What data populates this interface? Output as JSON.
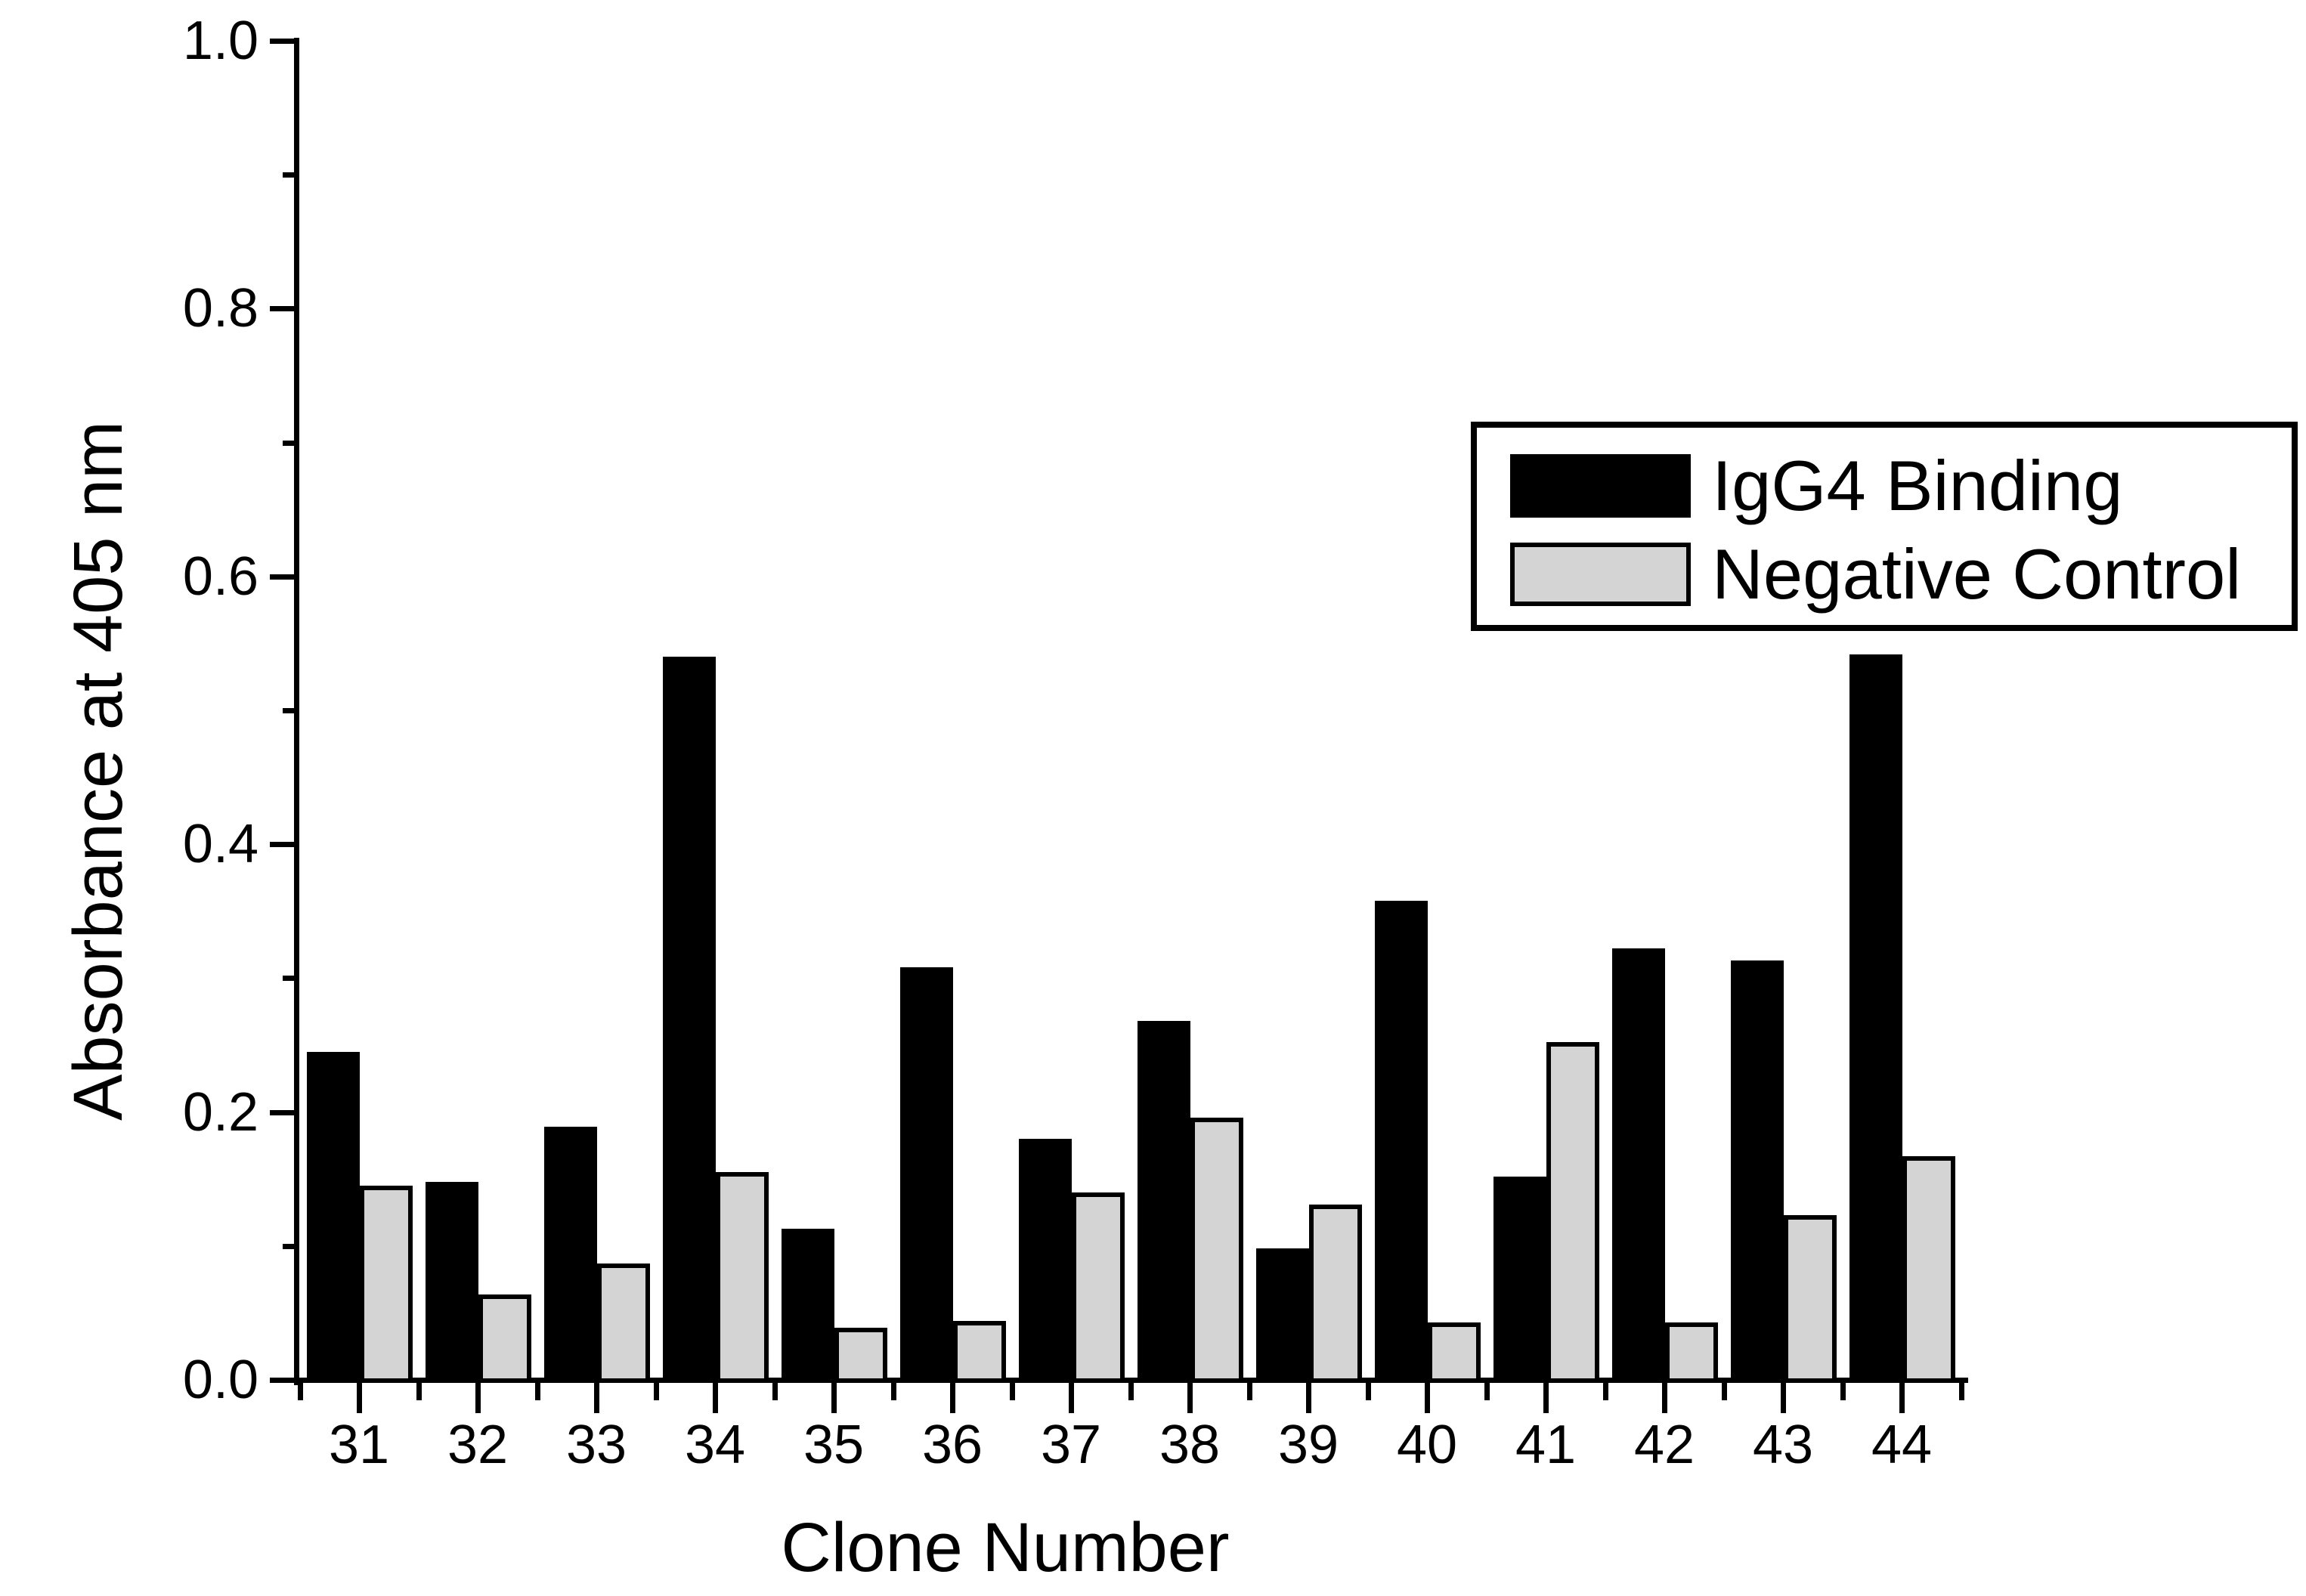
{
  "figure": {
    "background": "#ffffff",
    "axis_color": "#000000",
    "bar_outline_color": "#000000"
  },
  "chart_data": {
    "type": "bar",
    "title": "",
    "xlabel": "Clone Number",
    "ylabel": "Absorbance at 405 nm",
    "categories": [
      "31",
      "32",
      "33",
      "34",
      "35",
      "36",
      "37",
      "38",
      "39",
      "40",
      "41",
      "42",
      "43",
      "44"
    ],
    "series": [
      {
        "name": "IgG4 Binding",
        "color": "#000000",
        "values": [
          0.245,
          0.148,
          0.189,
          0.54,
          0.113,
          0.308,
          0.18,
          0.268,
          0.098,
          0.358,
          0.152,
          0.322,
          0.313,
          0.542
        ]
      },
      {
        "name": "Negative Control",
        "color": "#d4d4d4",
        "values": [
          0.145,
          0.064,
          0.087,
          0.155,
          0.039,
          0.044,
          0.14,
          0.196,
          0.131,
          0.043,
          0.252,
          0.043,
          0.123,
          0.167
        ]
      }
    ],
    "ylim": [
      0.0,
      1.0
    ],
    "y_major_tick_labels": [
      "0.0",
      "0.2",
      "0.4",
      "0.6",
      "0.8",
      "1.0"
    ],
    "y_major_tick_values": [
      0.0,
      0.2,
      0.4,
      0.6,
      0.8,
      1.0
    ],
    "y_minor_tick_values": [
      0.1,
      0.3,
      0.5,
      0.7,
      0.9
    ],
    "grid": false,
    "legend_position": "upper right"
  }
}
